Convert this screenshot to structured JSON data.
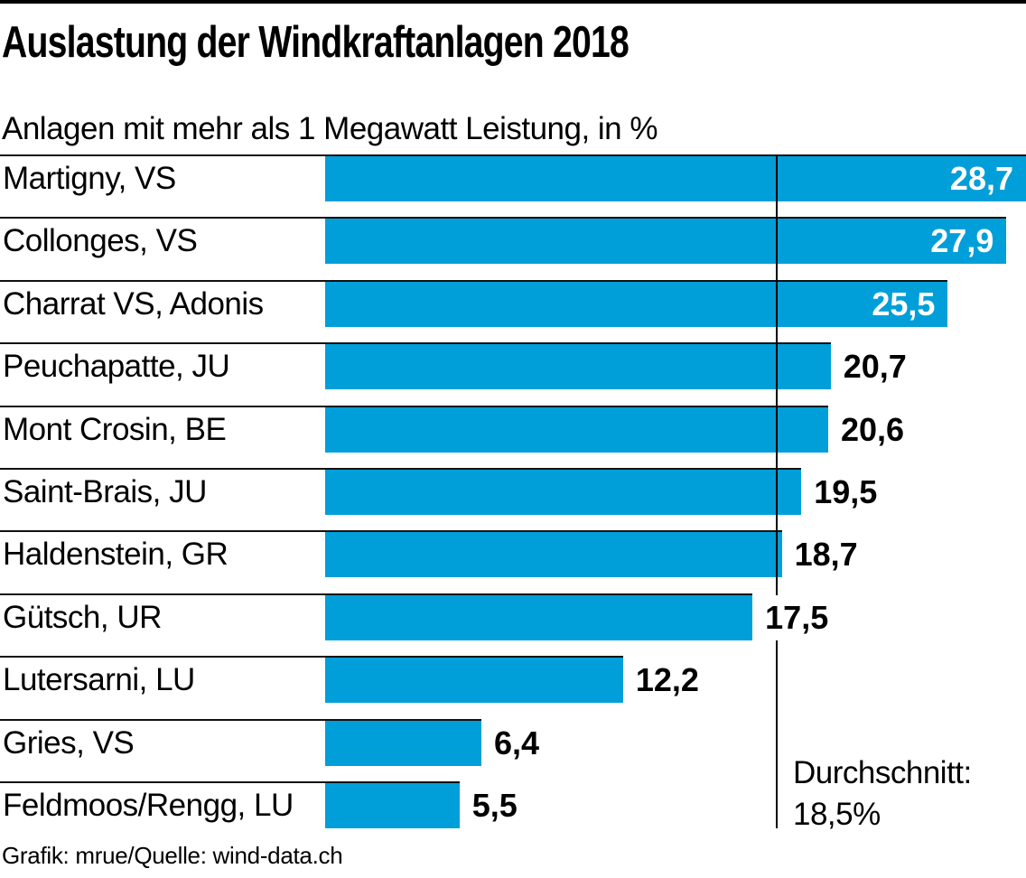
{
  "title": "Auslastung der Windkraftanlagen 2018",
  "subtitle": "Anlagen mit mehr als 1 Megawatt Leistung, in %",
  "footer": "Grafik: mrue/Quelle: wind-data.ch",
  "average_label": {
    "line1": "Durchschnitt:",
    "line2": "18,5%"
  },
  "colors": {
    "bar": "#009fd9",
    "separator": "#111111",
    "top_rule": "#000000",
    "value_inside": "#ffffff",
    "value_outside": "#000000"
  },
  "chart_data": {
    "type": "bar",
    "orientation": "horizontal",
    "title": "Auslastung der Windkraftanlagen 2018",
    "subtitle": "Anlagen mit mehr als 1 Megawatt Leistung, in %",
    "categories": [
      "Martigny, VS",
      "Collonges, VS",
      "Charrat VS, Adonis",
      "Peuchapatte, JU",
      "Mont Crosin, BE",
      "Saint-Brais, JU",
      "Haldenstein, GR",
      "Gütsch, UR",
      "Lutersarni, LU",
      "Gries, VS",
      "Feldmoos/Rengg, LU"
    ],
    "values": [
      28.7,
      27.9,
      25.5,
      20.7,
      20.6,
      19.5,
      18.7,
      17.5,
      12.2,
      6.4,
      5.5
    ],
    "value_labels": [
      "28,7",
      "27,9",
      "25,5",
      "20,7",
      "20,6",
      "19,5",
      "18,7",
      "17,5",
      "12,2",
      "6,4",
      "5,5"
    ],
    "xlim": [
      0,
      28.7
    ],
    "grid": "row-separator-lines",
    "legend": "none",
    "average_line": {
      "value": 18.5,
      "label": "Durchschnitt: 18,5%"
    },
    "source": "Grafik: mrue/Quelle: wind-data.ch"
  }
}
